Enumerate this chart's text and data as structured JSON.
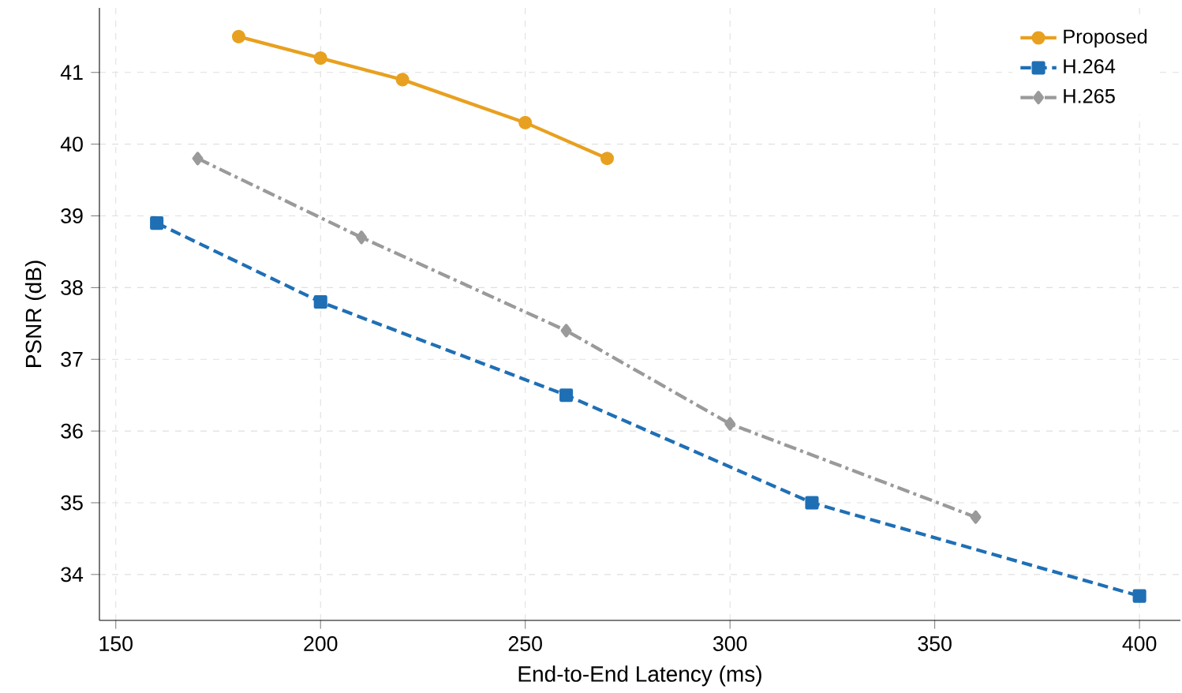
{
  "chart_data": {
    "type": "line",
    "xlabel": "End-to-End Latency (ms)",
    "ylabel": "PSNR (dB)",
    "xlim": [
      146,
      410
    ],
    "ylim": [
      33.36,
      41.9
    ],
    "xticks": [
      150,
      200,
      250,
      300,
      350,
      400
    ],
    "yticks": [
      34,
      35,
      36,
      37,
      38,
      39,
      40,
      41
    ],
    "grid": true,
    "legend": "top right",
    "series": [
      {
        "name": "Proposed",
        "color": "#e8a020",
        "marker": "circle",
        "line_style": "solid",
        "x": [
          180,
          200,
          220,
          250,
          270
        ],
        "values": [
          41.5,
          41.2,
          40.9,
          40.3,
          39.8
        ]
      },
      {
        "name": "H.264",
        "color": "#1f6fb5",
        "marker": "square",
        "line_style": "dashed",
        "x": [
          160,
          200,
          260,
          320,
          400
        ],
        "values": [
          38.9,
          37.8,
          36.5,
          35.0,
          33.7
        ]
      },
      {
        "name": "H.265",
        "color": "#9a9a9a",
        "marker": "diamond",
        "line_style": "dashdot",
        "x": [
          170,
          210,
          260,
          300,
          360
        ],
        "values": [
          39.8,
          38.7,
          37.4,
          36.1,
          34.8
        ]
      }
    ]
  }
}
